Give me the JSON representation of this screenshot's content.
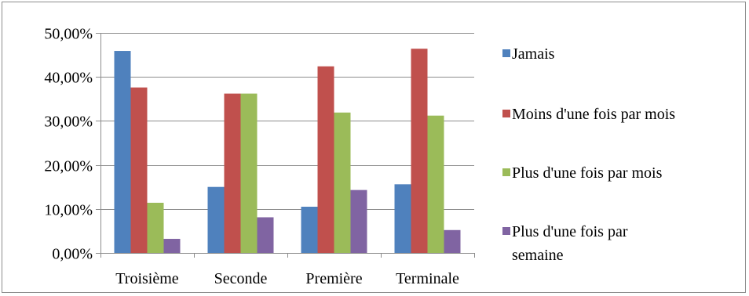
{
  "chart_data": {
    "type": "bar",
    "categories": [
      "Troisième",
      "Seconde",
      "Première",
      "Terminale"
    ],
    "series": [
      {
        "name": "Jamais",
        "color": "#4f81bd",
        "values": [
          45.9,
          15.0,
          10.5,
          15.6
        ]
      },
      {
        "name": "Moins d'une fois par mois",
        "color": "#c0504d",
        "values": [
          37.6,
          36.2,
          42.4,
          46.4
        ]
      },
      {
        "name": "Plus d'une fois par mois",
        "color": "#9bbb59",
        "values": [
          11.4,
          36.2,
          31.9,
          31.2
        ]
      },
      {
        "name": "Plus d'une fois par semaine",
        "color": "#8064a2",
        "values": [
          3.2,
          8.1,
          14.3,
          5.2
        ]
      }
    ],
    "y_ticks": [
      "0,00%",
      "10,00%",
      "20,00%",
      "30,00%",
      "40,00%",
      "50,00%"
    ],
    "ylim": [
      0,
      50
    ],
    "legend_position": "right",
    "legend_lines": [
      [
        "Jamais"
      ],
      [
        "Moins d'une fois par mois"
      ],
      [
        "Plus d'une fois par mois"
      ],
      [
        "Plus d'une fois par",
        "semaine"
      ]
    ],
    "grid": true
  }
}
